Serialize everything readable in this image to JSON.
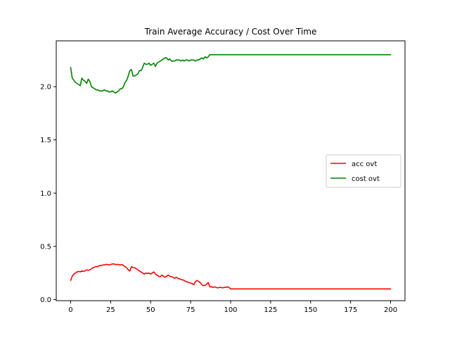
{
  "chart_data": {
    "type": "line",
    "title": "Train Average Accuracy / Cost Over Time",
    "xlabel": "",
    "ylabel": "",
    "xlim": [
      -9,
      209
    ],
    "ylim": [
      -0.01,
      2.43
    ],
    "xticks": [
      0,
      25,
      50,
      75,
      100,
      125,
      150,
      175,
      200
    ],
    "yticks": [
      0.0,
      0.5,
      1.0,
      1.5,
      2.0
    ],
    "ytick_labels": [
      "0.0",
      "0.5",
      "1.0",
      "1.5",
      "2.0"
    ],
    "xtick_labels": [
      "0",
      "25",
      "50",
      "75",
      "100",
      "125",
      "150",
      "175",
      "200"
    ],
    "grid": false,
    "legend": {
      "placement": "center-right"
    },
    "series": [
      {
        "name": "acc ovt",
        "color": "#ff0000",
        "x": [
          0,
          1,
          2,
          3,
          4,
          5,
          6,
          7,
          8,
          9,
          10,
          11,
          12,
          13,
          14,
          15,
          16,
          17,
          18,
          19,
          20,
          21,
          22,
          23,
          24,
          25,
          26,
          27,
          28,
          29,
          30,
          31,
          32,
          33,
          34,
          35,
          36,
          37,
          38,
          39,
          40,
          41,
          42,
          43,
          44,
          45,
          46,
          47,
          48,
          49,
          50,
          51,
          52,
          53,
          54,
          55,
          56,
          57,
          58,
          59,
          60,
          61,
          62,
          63,
          64,
          65,
          66,
          67,
          68,
          69,
          70,
          71,
          72,
          73,
          74,
          75,
          76,
          77,
          78,
          79,
          80,
          81,
          82,
          83,
          84,
          85,
          86,
          87,
          88,
          89,
          90,
          91,
          92,
          93,
          94,
          95,
          96,
          97,
          98,
          99,
          100,
          101,
          102,
          103,
          104,
          105,
          110,
          120,
          130,
          140,
          150,
          160,
          170,
          180,
          190,
          200
        ],
        "y": [
          0.18,
          0.22,
          0.24,
          0.25,
          0.26,
          0.265,
          0.26,
          0.27,
          0.265,
          0.27,
          0.28,
          0.275,
          0.28,
          0.29,
          0.3,
          0.305,
          0.31,
          0.31,
          0.32,
          0.32,
          0.325,
          0.325,
          0.33,
          0.33,
          0.325,
          0.33,
          0.335,
          0.335,
          0.33,
          0.33,
          0.33,
          0.325,
          0.33,
          0.32,
          0.31,
          0.3,
          0.28,
          0.27,
          0.31,
          0.3,
          0.3,
          0.29,
          0.28,
          0.27,
          0.26,
          0.25,
          0.24,
          0.25,
          0.245,
          0.25,
          0.24,
          0.25,
          0.26,
          0.24,
          0.23,
          0.22,
          0.215,
          0.23,
          0.22,
          0.21,
          0.22,
          0.23,
          0.22,
          0.215,
          0.21,
          0.2,
          0.21,
          0.2,
          0.195,
          0.19,
          0.185,
          0.18,
          0.17,
          0.165,
          0.16,
          0.155,
          0.15,
          0.14,
          0.17,
          0.18,
          0.17,
          0.16,
          0.14,
          0.13,
          0.135,
          0.145,
          0.16,
          0.12,
          0.12,
          0.115,
          0.12,
          0.115,
          0.11,
          0.115,
          0.115,
          0.11,
          0.115,
          0.115,
          0.12,
          0.115,
          0.1,
          0.1,
          0.1,
          0.1,
          0.1,
          0.1,
          0.1,
          0.1,
          0.1,
          0.1,
          0.1,
          0.1,
          0.1,
          0.1,
          0.1,
          0.1
        ]
      },
      {
        "name": "cost ovt",
        "color": "#008000",
        "x": [
          0,
          1,
          2,
          3,
          4,
          5,
          6,
          7,
          8,
          9,
          10,
          11,
          12,
          13,
          14,
          15,
          16,
          17,
          18,
          19,
          20,
          21,
          22,
          23,
          24,
          25,
          26,
          27,
          28,
          29,
          30,
          31,
          32,
          33,
          34,
          35,
          36,
          37,
          38,
          39,
          40,
          41,
          42,
          43,
          44,
          45,
          46,
          47,
          48,
          49,
          50,
          51,
          52,
          53,
          54,
          55,
          56,
          57,
          58,
          59,
          60,
          61,
          62,
          63,
          64,
          65,
          66,
          67,
          68,
          69,
          70,
          71,
          72,
          73,
          74,
          75,
          76,
          77,
          78,
          79,
          80,
          81,
          82,
          83,
          84,
          85,
          86,
          87,
          88,
          89,
          90,
          95,
          100,
          110,
          120,
          130,
          140,
          150,
          160,
          170,
          180,
          190,
          200
        ],
        "y": [
          2.18,
          2.08,
          2.06,
          2.04,
          2.03,
          2.02,
          2.01,
          2.08,
          2.06,
          2.05,
          2.03,
          2.07,
          2.05,
          2.0,
          1.99,
          1.98,
          1.97,
          1.97,
          1.96,
          1.96,
          1.96,
          1.97,
          1.96,
          1.96,
          1.95,
          1.95,
          1.96,
          1.95,
          1.94,
          1.95,
          1.96,
          1.98,
          1.98,
          2.0,
          2.04,
          2.06,
          2.1,
          2.15,
          2.16,
          2.1,
          2.1,
          2.11,
          2.12,
          2.15,
          2.15,
          2.18,
          2.22,
          2.21,
          2.21,
          2.22,
          2.2,
          2.21,
          2.22,
          2.19,
          2.22,
          2.23,
          2.24,
          2.25,
          2.26,
          2.27,
          2.27,
          2.25,
          2.26,
          2.24,
          2.24,
          2.24,
          2.25,
          2.25,
          2.25,
          2.24,
          2.25,
          2.24,
          2.25,
          2.25,
          2.24,
          2.25,
          2.25,
          2.25,
          2.24,
          2.25,
          2.25,
          2.26,
          2.27,
          2.26,
          2.28,
          2.27,
          2.28,
          2.3,
          2.3,
          2.3,
          2.3,
          2.3,
          2.3,
          2.3,
          2.3,
          2.3,
          2.3,
          2.3,
          2.3,
          2.3,
          2.3,
          2.3,
          2.3
        ]
      }
    ]
  }
}
